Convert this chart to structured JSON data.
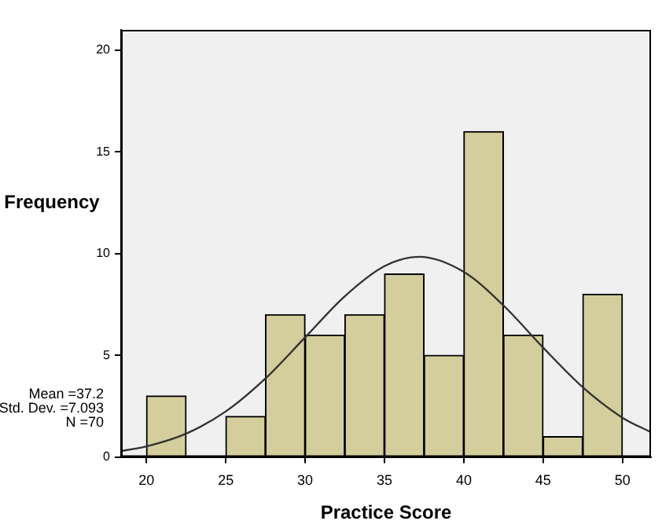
{
  "chart_data": {
    "type": "histogram",
    "xlabel": "Practice Score",
    "ylabel": "Frequency",
    "bins": [
      20,
      22.5,
      25,
      27.5,
      30,
      32.5,
      35,
      37.5,
      40,
      42.5,
      45,
      47.5,
      50
    ],
    "values": [
      3,
      0,
      2,
      7,
      6,
      7,
      9,
      5,
      16,
      6,
      1,
      8
    ],
    "color": "#d3ce9c",
    "series": [
      {
        "type": "line",
        "color": "#333333",
        "x": [
          18.4,
          20,
          22.5,
          25,
          27.5,
          30,
          32.5,
          35,
          37.2,
          40,
          42.5,
          45,
          47.5,
          50,
          51.8
        ],
        "values": [
          0.29,
          0.52,
          1.15,
          2.24,
          3.86,
          5.88,
          7.9,
          9.38,
          9.84,
          9.1,
          7.45,
          5.38,
          3.43,
          1.93,
          1.22
        ]
      }
    ],
    "xlim": [
      18.4,
      51.8
    ],
    "xticks": [
      20,
      25,
      30,
      35,
      40,
      45,
      50
    ],
    "ylim": [
      0,
      21
    ],
    "yticks": [
      0,
      5,
      10,
      15,
      20
    ],
    "grid": false,
    "legend": false,
    "marker": "none",
    "annotations": [
      "Mean =37.2",
      "Std. Dev. =7.093",
      "N =70"
    ]
  }
}
